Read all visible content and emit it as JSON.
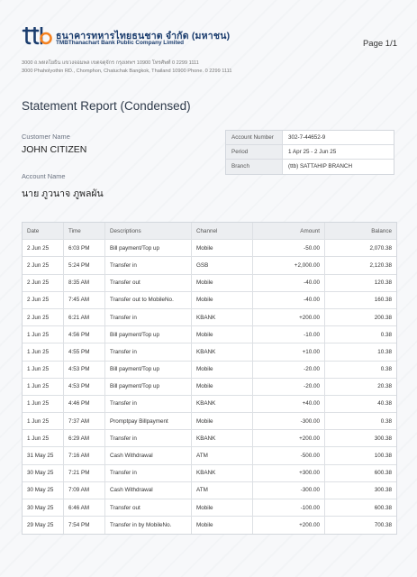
{
  "header": {
    "bank_name_th": "ธนาคารทหารไทยธนชาต จำกัด (มหาชน)",
    "bank_name_en": "TMBThanachart Bank Public Company Limited",
    "page_number": "Page 1/1",
    "address_th": "3000 ถ.พหลโยธิน แขวงจอมพล เขตจตุจักร กรุงเทพฯ 10900 โทรศัพท์ 0 2299 1111",
    "address_en": "3000 Phaholyothin RD., Chomphon, Chatuchak Bangkok, Thailand 10900 Phone. 0 2299 1111"
  },
  "report": {
    "title": "Statement Report (Condensed)",
    "customer_label": "Customer Name",
    "customer_name": "JOHN CITIZEN",
    "account_label": "Account Name",
    "account_name": "นาย ภูวนาจ ภูพลผัน"
  },
  "info": [
    {
      "label": "Account Number",
      "value": "302-7-44652-9"
    },
    {
      "label": "Period",
      "value": "1 Apr 25 - 2 Jun 25"
    },
    {
      "label": "Branch",
      "value": "(ttb) SATTAHIP BRANCH"
    }
  ],
  "table": {
    "headers": {
      "date": "Date",
      "time": "Time",
      "desc": "Descriptions",
      "channel": "Channel",
      "amount": "Amount",
      "balance": "Balance"
    },
    "rows": [
      {
        "date": "2 Jun 25",
        "time": "6:03 PM",
        "desc": "Bill payment/Top up",
        "channel": "Mobile",
        "amount": "-50.00",
        "balance": "2,070.38"
      },
      {
        "date": "2 Jun 25",
        "time": "5:24 PM",
        "desc": "Transfer in",
        "channel": "GSB",
        "amount": "+2,000.00",
        "balance": "2,120.38"
      },
      {
        "date": "2 Jun 25",
        "time": "8:35 AM",
        "desc": "Transfer out",
        "channel": "Mobile",
        "amount": "-40.00",
        "balance": "120.38"
      },
      {
        "date": "2 Jun 25",
        "time": "7:45 AM",
        "desc": "Transfer out to MobileNo.",
        "channel": "Mobile",
        "amount": "-40.00",
        "balance": "160.38"
      },
      {
        "date": "2 Jun 25",
        "time": "6:21 AM",
        "desc": "Transfer in",
        "channel": "KBANK",
        "amount": "+200.00",
        "balance": "200.38"
      },
      {
        "date": "1 Jun 25",
        "time": "4:56 PM",
        "desc": "Bill payment/Top up",
        "channel": "Mobile",
        "amount": "-10.00",
        "balance": "0.38"
      },
      {
        "date": "1 Jun 25",
        "time": "4:55 PM",
        "desc": "Transfer in",
        "channel": "KBANK",
        "amount": "+10.00",
        "balance": "10.38"
      },
      {
        "date": "1 Jun 25",
        "time": "4:53 PM",
        "desc": "Bill payment/Top up",
        "channel": "Mobile",
        "amount": "-20.00",
        "balance": "0.38"
      },
      {
        "date": "1 Jun 25",
        "time": "4:53 PM",
        "desc": "Bill payment/Top up",
        "channel": "Mobile",
        "amount": "-20.00",
        "balance": "20.38"
      },
      {
        "date": "1 Jun 25",
        "time": "4:46 PM",
        "desc": "Transfer in",
        "channel": "KBANK",
        "amount": "+40.00",
        "balance": "40.38"
      },
      {
        "date": "1 Jun 25",
        "time": "7:37 AM",
        "desc": "Promptpay Billpayment",
        "channel": "Mobile",
        "amount": "-300.00",
        "balance": "0.38"
      },
      {
        "date": "1 Jun 25",
        "time": "6:29 AM",
        "desc": "Transfer in",
        "channel": "KBANK",
        "amount": "+200.00",
        "balance": "300.38"
      },
      {
        "date": "31 May 25",
        "time": "7:16 AM",
        "desc": "Cash Withdrawal",
        "channel": "ATM",
        "amount": "-500.00",
        "balance": "100.38"
      },
      {
        "date": "30 May 25",
        "time": "7:21 PM",
        "desc": "Transfer in",
        "channel": "KBANK",
        "amount": "+300.00",
        "balance": "600.38"
      },
      {
        "date": "30 May 25",
        "time": "7:09 AM",
        "desc": "Cash Withdrawal",
        "channel": "ATM",
        "amount": "-300.00",
        "balance": "300.38"
      },
      {
        "date": "30 May 25",
        "time": "6:46 AM",
        "desc": "Transfer out",
        "channel": "Mobile",
        "amount": "-100.00",
        "balance": "600.38"
      },
      {
        "date": "29 May 25",
        "time": "7:54 PM",
        "desc": "Transfer in by MobileNo.",
        "channel": "Mobile",
        "amount": "+200.00",
        "balance": "700.38"
      }
    ]
  },
  "colors": {
    "brand_blue": "#1b3d6e",
    "brand_orange": "#f58220"
  },
  "icons": {
    "logo": "ttb-logo-icon"
  }
}
